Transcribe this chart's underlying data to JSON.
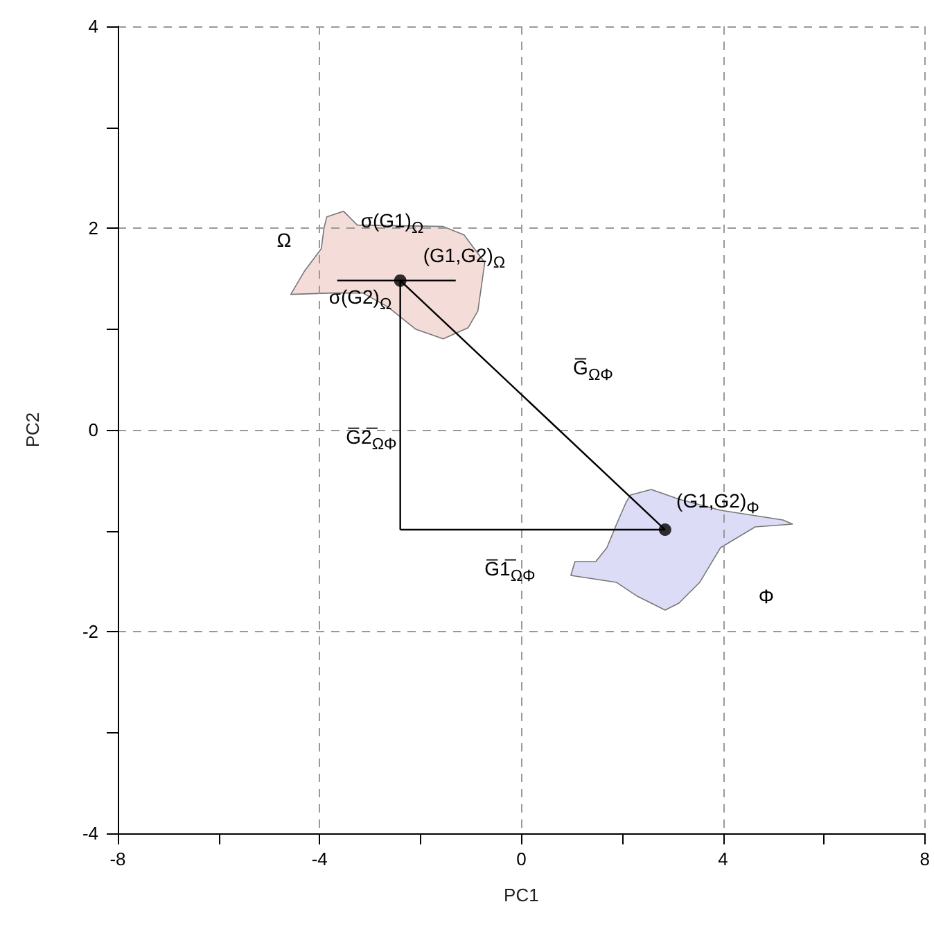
{
  "chart_data": {
    "type": "scatter",
    "xlabel": "PC1",
    "ylabel": "PC2",
    "xlim": [
      -8,
      8
    ],
    "ylim": [
      -4,
      4
    ],
    "xticks": [
      -8,
      {
        "value": -6,
        "label": null
      },
      -4,
      {
        "value": -2,
        "label": null
      },
      0,
      {
        "value": 2,
        "label": null
      },
      4,
      {
        "value": 6,
        "label": null
      },
      8
    ],
    "yticks": [
      -4,
      {
        "value": -3,
        "label": null
      },
      -2,
      {
        "value": -1,
        "label": null
      },
      0,
      {
        "value": 1,
        "label": null
      },
      2,
      {
        "value": 3,
        "label": null
      },
      4
    ],
    "grid": true,
    "marker": "circle",
    "series": [
      {
        "x": [
          -2.4,
          2.85
        ],
        "values": [
          1.48,
          -0.99
        ],
        "color": "#000000"
      },
      {
        "type": "line",
        "x": [
          -2.4,
          2.85
        ],
        "values": [
          1.48,
          -0.99
        ],
        "color": "#000000",
        "marker": "none"
      },
      {
        "type": "line",
        "x": [
          -2.4,
          2.85
        ],
        "values": [
          -0.99,
          -0.99
        ],
        "color": "#000000",
        "marker": "none"
      },
      {
        "type": "line",
        "x": [
          -2.4,
          -2.4
        ],
        "values": [
          1.48,
          -0.99
        ],
        "color": "#000000",
        "marker": "none"
      },
      {
        "type": "line",
        "x": [
          -3.65,
          -1.3
        ],
        "values": [
          1.48,
          1.48
        ],
        "color": "#000000",
        "marker": "none"
      }
    ],
    "annotations": [
      "Ω",
      "σ(G1)$_{Ω}$",
      "(G1,G2)$_{Ω}$",
      "σ(G2)$_{Ω}$",
      "G̅$_{ΩΦ}$",
      "G̅2̅$_{ΩΦ}$",
      "G̅1̅$_{ΩΦ}$",
      "(G1,G2)$_{Φ}$",
      "Φ"
    ]
  }
}
